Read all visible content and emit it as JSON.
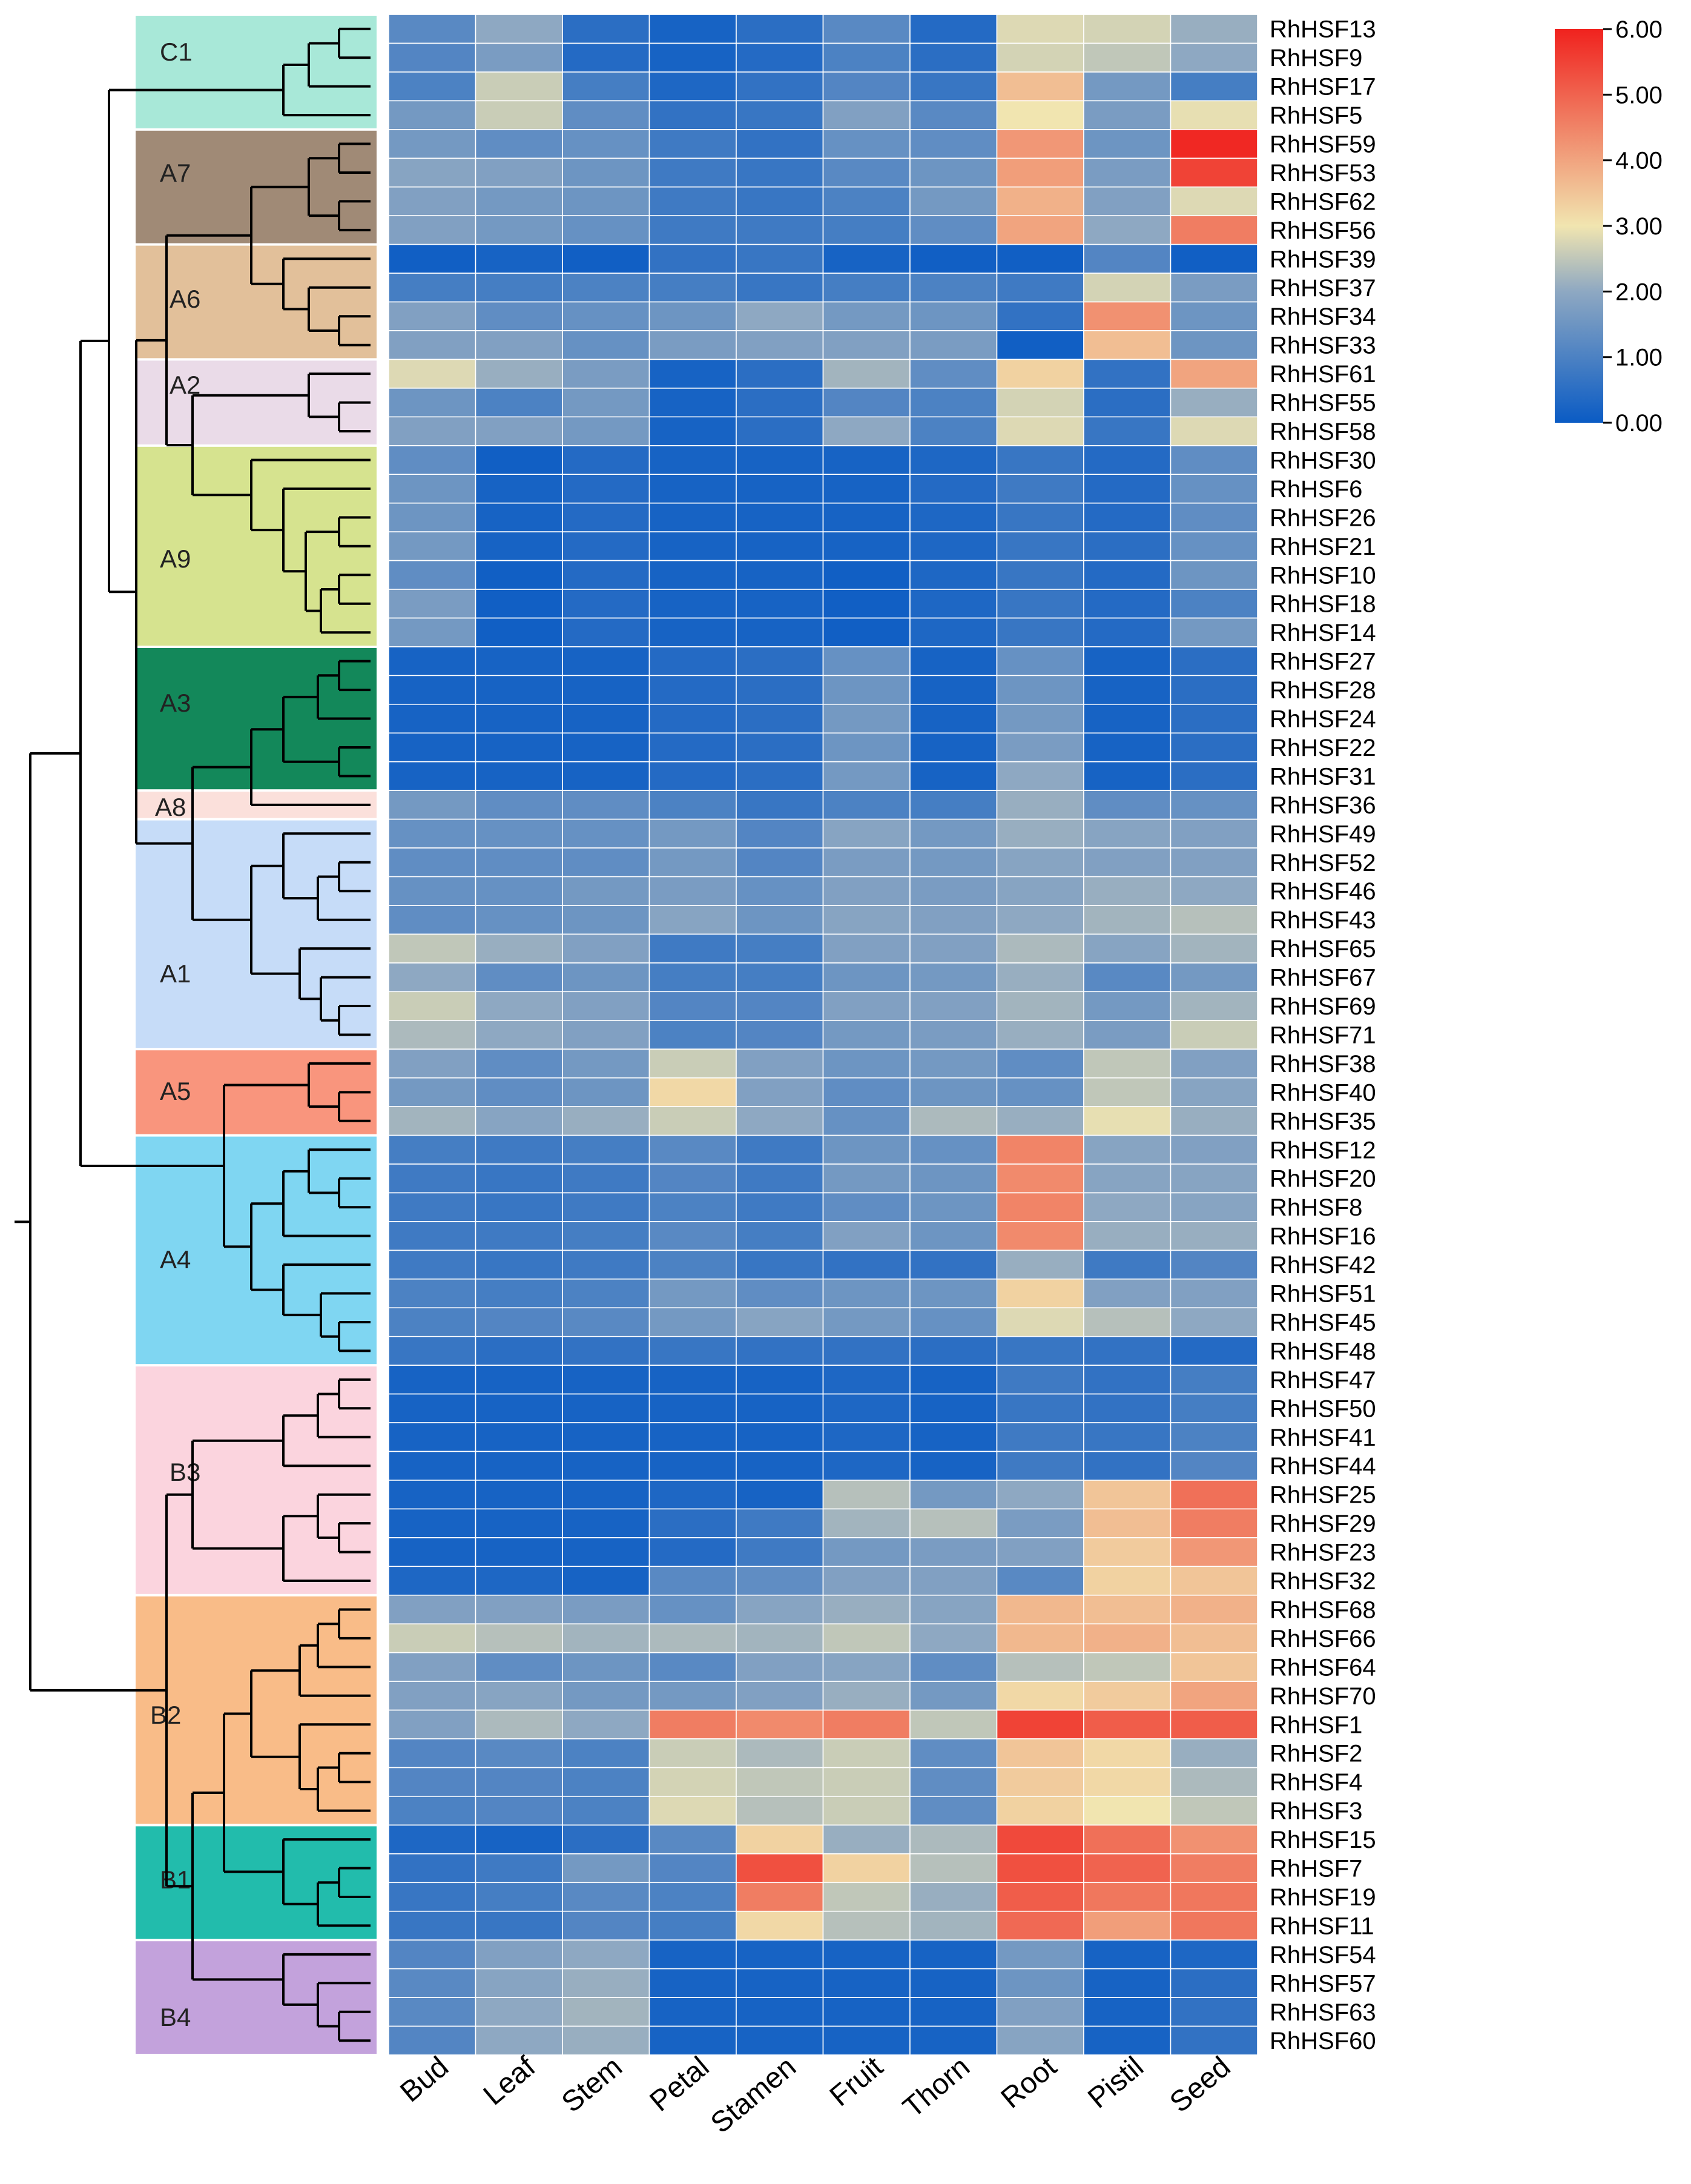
{
  "chart_data": {
    "type": "heatmap",
    "title": "",
    "xlabel": "",
    "ylabel": "",
    "columns": [
      "Bud",
      "Leaf",
      "Stem",
      "Petal",
      "Stamen",
      "Fruit",
      "Thorn",
      "Root",
      "Pistil",
      "Seed"
    ],
    "rows": [
      "RhHSF13",
      "RhHSF9",
      "RhHSF17",
      "RhHSF5",
      "RhHSF59",
      "RhHSF53",
      "RhHSF62",
      "RhHSF56",
      "RhHSF39",
      "RhHSF37",
      "RhHSF34",
      "RhHSF33",
      "RhHSF61",
      "RhHSF55",
      "RhHSF58",
      "RhHSF30",
      "RhHSF6",
      "RhHSF26",
      "RhHSF21",
      "RhHSF10",
      "RhHSF18",
      "RhHSF14",
      "RhHSF27",
      "RhHSF28",
      "RhHSF24",
      "RhHSF22",
      "RhHSF31",
      "RhHSF36",
      "RhHSF49",
      "RhHSF52",
      "RhHSF46",
      "RhHSF43",
      "RhHSF65",
      "RhHSF67",
      "RhHSF69",
      "RhHSF71",
      "RhHSF38",
      "RhHSF40",
      "RhHSF35",
      "RhHSF12",
      "RhHSF20",
      "RhHSF8",
      "RhHSF16",
      "RhHSF42",
      "RhHSF51",
      "RhHSF45",
      "RhHSF48",
      "RhHSF47",
      "RhHSF50",
      "RhHSF41",
      "RhHSF44",
      "RhHSF25",
      "RhHSF29",
      "RhHSF23",
      "RhHSF32",
      "RhHSF68",
      "RhHSF66",
      "RhHSF64",
      "RhHSF70",
      "RhHSF1",
      "RhHSF2",
      "RhHSF4",
      "RhHSF3",
      "RhHSF15",
      "RhHSF7",
      "RhHSF19",
      "RhHSF11",
      "RhHSF54",
      "RhHSF57",
      "RhHSF63",
      "RhHSF60"
    ],
    "values": [
      [
        1.2,
        2.0,
        0.5,
        0.2,
        0.5,
        1.2,
        0.4,
        2.8,
        2.7,
        2.1
      ],
      [
        1.1,
        1.7,
        0.4,
        0.2,
        0.4,
        1.0,
        0.5,
        2.7,
        2.5,
        2.0
      ],
      [
        1.0,
        2.6,
        0.9,
        0.3,
        0.6,
        1.1,
        0.7,
        3.6,
        1.6,
        0.9
      ],
      [
        1.6,
        2.6,
        1.3,
        0.6,
        0.7,
        1.8,
        1.2,
        3.0,
        1.7,
        2.9
      ],
      [
        1.6,
        1.3,
        1.4,
        0.8,
        0.6,
        1.4,
        1.3,
        4.2,
        1.5,
        5.9
      ],
      [
        1.9,
        1.8,
        1.5,
        0.8,
        0.7,
        1.2,
        1.5,
        4.1,
        1.7,
        5.5
      ],
      [
        1.8,
        1.6,
        1.5,
        0.8,
        0.7,
        1.0,
        1.6,
        3.8,
        1.8,
        2.8
      ],
      [
        1.8,
        1.6,
        1.4,
        0.8,
        0.8,
        0.9,
        1.3,
        4.0,
        2.0,
        4.6
      ],
      [
        0.1,
        0.2,
        0.1,
        0.6,
        0.7,
        0.2,
        0.1,
        0.1,
        1.1,
        0.1
      ],
      [
        0.9,
        0.9,
        1.0,
        0.9,
        0.7,
        0.9,
        1.0,
        0.8,
        2.7,
        1.7
      ],
      [
        1.8,
        1.3,
        1.4,
        1.5,
        2.0,
        1.6,
        1.5,
        0.6,
        4.3,
        1.5
      ],
      [
        1.8,
        1.8,
        1.4,
        1.7,
        1.8,
        1.8,
        1.7,
        0.1,
        3.6,
        1.5
      ],
      [
        2.8,
        2.1,
        1.7,
        0.2,
        0.5,
        2.2,
        1.3,
        3.3,
        0.6,
        4.0
      ],
      [
        1.5,
        1.0,
        1.6,
        0.2,
        0.5,
        1.1,
        1.0,
        2.7,
        0.5,
        2.1
      ],
      [
        1.8,
        1.8,
        1.6,
        0.2,
        0.5,
        2.0,
        1.0,
        2.8,
        0.7,
        2.8
      ],
      [
        1.3,
        0.1,
        0.4,
        0.2,
        0.2,
        0.2,
        0.3,
        0.7,
        0.4,
        1.3
      ],
      [
        1.5,
        0.2,
        0.4,
        0.2,
        0.2,
        0.2,
        0.4,
        0.8,
        0.4,
        1.4
      ],
      [
        1.5,
        0.2,
        0.4,
        0.2,
        0.2,
        0.2,
        0.3,
        0.7,
        0.4,
        1.3
      ],
      [
        1.6,
        0.2,
        0.4,
        0.2,
        0.2,
        0.2,
        0.3,
        0.7,
        0.5,
        1.4
      ],
      [
        1.3,
        0.1,
        0.4,
        0.2,
        0.2,
        0.1,
        0.3,
        0.7,
        0.4,
        1.5
      ],
      [
        1.7,
        0.1,
        0.4,
        0.2,
        0.2,
        0.1,
        0.3,
        0.7,
        0.4,
        1.0
      ],
      [
        1.6,
        0.1,
        0.4,
        0.2,
        0.2,
        0.1,
        0.3,
        0.7,
        0.4,
        1.6
      ],
      [
        0.2,
        0.2,
        0.2,
        0.4,
        0.5,
        1.4,
        0.2,
        1.4,
        0.2,
        0.5
      ],
      [
        0.2,
        0.2,
        0.2,
        0.4,
        0.5,
        1.5,
        0.2,
        1.5,
        0.2,
        0.5
      ],
      [
        0.2,
        0.2,
        0.2,
        0.4,
        0.5,
        1.6,
        0.2,
        1.6,
        0.2,
        0.5
      ],
      [
        0.2,
        0.2,
        0.2,
        0.4,
        0.5,
        1.5,
        0.2,
        1.7,
        0.2,
        0.5
      ],
      [
        0.2,
        0.2,
        0.2,
        0.4,
        0.5,
        1.6,
        0.2,
        2.0,
        0.2,
        0.5
      ],
      [
        1.6,
        1.3,
        1.3,
        1.0,
        0.7,
        1.0,
        0.9,
        2.1,
        1.3,
        1.4
      ],
      [
        1.4,
        1.4,
        1.4,
        1.6,
        1.1,
        1.9,
        1.6,
        2.1,
        1.9,
        1.8
      ],
      [
        1.3,
        1.3,
        1.3,
        1.6,
        1.1,
        1.7,
        1.6,
        1.9,
        1.8,
        1.8
      ],
      [
        1.4,
        1.4,
        1.6,
        1.7,
        1.4,
        1.8,
        1.7,
        1.9,
        2.1,
        2.0
      ],
      [
        1.3,
        1.4,
        1.5,
        1.9,
        1.5,
        1.9,
        1.8,
        2.0,
        2.2,
        2.4
      ],
      [
        2.5,
        2.1,
        1.8,
        0.8,
        0.9,
        1.8,
        1.8,
        2.3,
        1.9,
        2.2
      ],
      [
        2.0,
        1.3,
        1.5,
        0.9,
        0.9,
        1.5,
        1.6,
        2.1,
        1.2,
        1.6
      ],
      [
        2.6,
        2.0,
        1.8,
        1.1,
        1.1,
        1.8,
        1.8,
        2.2,
        1.6,
        2.2
      ],
      [
        2.3,
        2.0,
        1.8,
        1.0,
        1.1,
        1.6,
        1.7,
        2.1,
        1.7,
        2.6
      ],
      [
        1.8,
        1.3,
        1.6,
        2.6,
        1.8,
        1.5,
        1.6,
        1.3,
        2.5,
        1.8
      ],
      [
        1.6,
        1.3,
        1.5,
        3.2,
        1.8,
        1.3,
        1.5,
        1.4,
        2.5,
        1.9
      ],
      [
        2.2,
        1.9,
        2.1,
        2.6,
        2.0,
        1.4,
        2.3,
        2.1,
        2.9,
        2.1
      ],
      [
        0.9,
        0.8,
        0.9,
        1.2,
        0.8,
        1.5,
        1.4,
        4.5,
        1.9,
        1.8
      ],
      [
        0.8,
        0.7,
        0.8,
        1.1,
        0.8,
        1.6,
        1.5,
        4.4,
        1.9,
        1.9
      ],
      [
        0.8,
        0.7,
        0.8,
        1.0,
        0.8,
        1.3,
        1.5,
        4.5,
        2.0,
        1.9
      ],
      [
        0.8,
        0.8,
        0.9,
        1.2,
        0.9,
        1.8,
        1.5,
        4.4,
        2.1,
        2.1
      ],
      [
        0.8,
        0.7,
        0.8,
        1.0,
        0.7,
        0.6,
        0.6,
        2.1,
        0.8,
        1.1
      ],
      [
        1.0,
        0.9,
        1.0,
        1.6,
        1.3,
        1.5,
        1.5,
        3.3,
        1.8,
        1.8
      ],
      [
        1.0,
        1.1,
        1.2,
        1.6,
        1.9,
        1.6,
        1.4,
        2.8,
        2.4,
        2.0
      ],
      [
        0.7,
        0.5,
        0.6,
        0.7,
        0.6,
        0.6,
        0.5,
        0.7,
        0.6,
        0.4
      ],
      [
        0.2,
        0.2,
        0.2,
        0.2,
        0.2,
        0.3,
        0.2,
        0.8,
        0.6,
        0.9
      ],
      [
        0.2,
        0.2,
        0.2,
        0.2,
        0.2,
        0.3,
        0.2,
        0.7,
        0.6,
        0.9
      ],
      [
        0.2,
        0.2,
        0.2,
        0.2,
        0.2,
        0.3,
        0.2,
        0.8,
        0.7,
        1.0
      ],
      [
        0.2,
        0.2,
        0.2,
        0.2,
        0.2,
        0.3,
        0.2,
        0.8,
        0.6,
        1.1
      ],
      [
        0.2,
        0.2,
        0.2,
        0.3,
        0.2,
        2.4,
        1.6,
        2.0,
        3.5,
        4.8
      ],
      [
        0.2,
        0.2,
        0.2,
        0.5,
        0.8,
        2.2,
        2.4,
        1.7,
        3.6,
        4.6
      ],
      [
        0.2,
        0.2,
        0.2,
        0.4,
        0.8,
        1.6,
        1.7,
        1.8,
        3.4,
        4.2
      ],
      [
        0.3,
        0.3,
        0.2,
        1.2,
        1.3,
        1.8,
        1.8,
        1.2,
        3.3,
        3.5
      ],
      [
        1.8,
        1.8,
        1.7,
        1.4,
        1.9,
        2.1,
        1.9,
        3.7,
        3.6,
        3.8
      ],
      [
        2.6,
        2.4,
        2.2,
        2.3,
        2.2,
        2.5,
        2.0,
        3.7,
        3.8,
        3.6
      ],
      [
        1.8,
        1.3,
        1.5,
        1.2,
        1.8,
        1.9,
        1.3,
        2.4,
        2.5,
        3.5
      ],
      [
        1.8,
        1.9,
        1.6,
        1.6,
        1.8,
        2.1,
        1.6,
        3.2,
        3.4,
        4.0
      ],
      [
        1.8,
        2.3,
        2.0,
        4.6,
        4.4,
        4.6,
        2.5,
        5.5,
        5.1,
        5.1
      ],
      [
        1.1,
        1.2,
        1.0,
        2.6,
        2.3,
        2.6,
        1.3,
        3.5,
        3.2,
        2.1
      ],
      [
        1.1,
        1.1,
        1.0,
        2.7,
        2.5,
        2.6,
        1.3,
        3.4,
        3.2,
        2.3
      ],
      [
        1.0,
        1.1,
        1.0,
        2.8,
        2.4,
        2.6,
        1.3,
        3.3,
        3.0,
        2.5
      ],
      [
        0.3,
        0.2,
        0.5,
        1.2,
        3.3,
        2.1,
        2.3,
        5.4,
        4.8,
        4.3
      ],
      [
        0.6,
        0.8,
        1.6,
        1.1,
        5.3,
        3.3,
        2.4,
        5.3,
        5.0,
        4.6
      ],
      [
        0.7,
        0.9,
        1.2,
        1.0,
        4.6,
        2.5,
        2.1,
        5.1,
        4.7,
        4.7
      ],
      [
        0.7,
        0.7,
        1.1,
        0.9,
        3.2,
        2.4,
        2.2,
        4.9,
        4.1,
        4.7
      ],
      [
        1.1,
        1.8,
        2.0,
        0.2,
        0.2,
        0.2,
        0.2,
        1.6,
        0.2,
        0.3
      ],
      [
        1.2,
        1.9,
        2.1,
        0.2,
        0.2,
        0.2,
        0.2,
        1.5,
        0.2,
        0.5
      ],
      [
        1.2,
        2.0,
        2.2,
        0.2,
        0.2,
        0.2,
        0.2,
        1.8,
        0.2,
        0.6
      ],
      [
        1.1,
        2.0,
        2.1,
        0.2,
        0.2,
        0.2,
        0.2,
        1.9,
        0.2,
        0.6
      ]
    ],
    "clusters": [
      {
        "label": "C1",
        "color": "#a8e8d8"
      },
      {
        "label": "A7",
        "color": "#a08a76"
      },
      {
        "label": "A6",
        "color": "#e2c09a"
      },
      {
        "label": "A2",
        "color": "#eadbe8"
      },
      {
        "label": "A9",
        "color": "#d6e38f"
      },
      {
        "label": "A3",
        "color": "#13885a"
      },
      {
        "label": "A8",
        "color": "#fbe0db"
      },
      {
        "label": "A1",
        "color": "#c6dcf8"
      },
      {
        "label": "A5",
        "color": "#f9957d"
      },
      {
        "label": "A4",
        "color": "#7fd6f2"
      },
      {
        "label": "B3",
        "color": "#fbd4de"
      },
      {
        "label": "B2",
        "color": "#f9bc88"
      },
      {
        "label": "B1",
        "color": "#22bcac"
      },
      {
        "label": "B4",
        "color": "#c3a2dc"
      }
    ],
    "colorbar": {
      "range": [
        0,
        6
      ],
      "ticks": [
        "0.00",
        "1.00",
        "2.00",
        "3.00",
        "4.00",
        "5.00",
        "6.00"
      ],
      "colors": [
        "#0a5bc4",
        "#8ea8c2",
        "#f1e5b0",
        "#f0221e"
      ]
    }
  }
}
